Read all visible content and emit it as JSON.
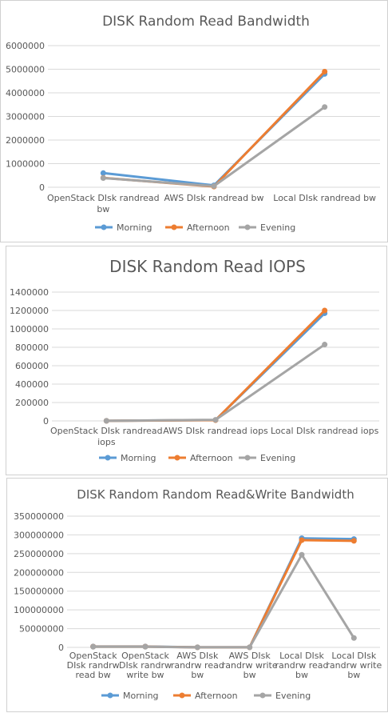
{
  "chart_data": [
    {
      "type": "line",
      "title": "DISK Random Read Bandwidth",
      "categories": [
        "OpenStack DIsk randread bw",
        "AWS DIsk randread bw",
        "Local DIsk randread bw"
      ],
      "category_lines": [
        [
          "OpenStack DIsk randread",
          "bw"
        ],
        [
          "AWS DIsk randread bw"
        ],
        [
          "Local DIsk randread bw"
        ]
      ],
      "ylim": [
        0,
        6000000
      ],
      "yticks": [
        0,
        1000000,
        2000000,
        3000000,
        4000000,
        5000000,
        6000000
      ],
      "ytick_labels": [
        "0",
        "1000000",
        "2000000",
        "3000000",
        "4000000",
        "5000000",
        "6000000"
      ],
      "series": [
        {
          "name": "Morning",
          "color": "#5b9bd5",
          "values": [
            600000,
            80000,
            4800000
          ]
        },
        {
          "name": "Afternoon",
          "color": "#ed7d31",
          "values": [
            400000,
            30000,
            4900000
          ]
        },
        {
          "name": "Evening",
          "color": "#a5a5a5",
          "values": [
            390000,
            50000,
            3400000
          ]
        }
      ],
      "grid": true,
      "legend": "bottom"
    },
    {
      "type": "line",
      "title": "DISK Random Read IOPS",
      "categories": [
        "OpenStack DIsk randread iops",
        "AWS DIsk randread iops",
        "Local DIsk randread iops"
      ],
      "category_lines": [
        [
          "OpenStack DIsk randread",
          "iops"
        ],
        [
          "AWS DIsk randread iops"
        ],
        [
          "Local DIsk randread iops"
        ]
      ],
      "ylim": [
        0,
        1400000
      ],
      "yticks": [
        0,
        200000,
        400000,
        600000,
        800000,
        1000000,
        1200000,
        1400000
      ],
      "ytick_labels": [
        "0",
        "200000",
        "400000",
        "600000",
        "800000",
        "1000000",
        "1200000",
        "1400000"
      ],
      "series": [
        {
          "name": "Morning",
          "color": "#5b9bd5",
          "values": [
            1000,
            10000,
            1170000
          ]
        },
        {
          "name": "Afternoon",
          "color": "#ed7d31",
          "values": [
            1000,
            8000,
            1200000
          ]
        },
        {
          "name": "Evening",
          "color": "#a5a5a5",
          "values": [
            1000,
            12000,
            830000
          ]
        }
      ],
      "grid": true,
      "legend": "bottom"
    },
    {
      "type": "line",
      "title": "DISK Random Random Read&Write Bandwidth",
      "categories": [
        "OpenStack DIsk randrw read bw",
        "OpenStack DIsk randrw write bw",
        "AWS DIsk randrw read bw",
        "AWS DIsk randrw write bw",
        "Local DIsk randrw read bw",
        "Local DIsk randrw write bw"
      ],
      "category_lines": [
        [
          "OpenStack",
          "DIsk randrw",
          "read bw"
        ],
        [
          "OpenStack",
          "DIsk randrw",
          "write bw"
        ],
        [
          "AWS DIsk",
          "randrw read",
          "bw"
        ],
        [
          "AWS DIsk",
          "randrw write",
          "bw"
        ],
        [
          "Local DIsk",
          "randrw read",
          "bw"
        ],
        [
          "Local DIsk",
          "randrw write",
          "bw"
        ]
      ],
      "ylim": [
        0,
        350000000
      ],
      "yticks": [
        0,
        50000000,
        100000000,
        150000000,
        200000000,
        250000000,
        300000000,
        350000000
      ],
      "ytick_labels": [
        "0",
        "50000000",
        "100000000",
        "150000000",
        "200000000",
        "250000000",
        "300000000",
        "350000000"
      ],
      "series": [
        {
          "name": "Morning",
          "color": "#5b9bd5",
          "values": [
            2500000,
            2500000,
            300000,
            300000,
            291000000,
            289000000
          ]
        },
        {
          "name": "Afternoon",
          "color": "#ed7d31",
          "values": [
            2000000,
            2000000,
            300000,
            300000,
            286000000,
            284000000
          ]
        },
        {
          "name": "Evening",
          "color": "#a5a5a5",
          "values": [
            1500000,
            1500000,
            300000,
            300000,
            247000000,
            25000000
          ]
        }
      ],
      "grid": true,
      "legend": "bottom"
    }
  ]
}
